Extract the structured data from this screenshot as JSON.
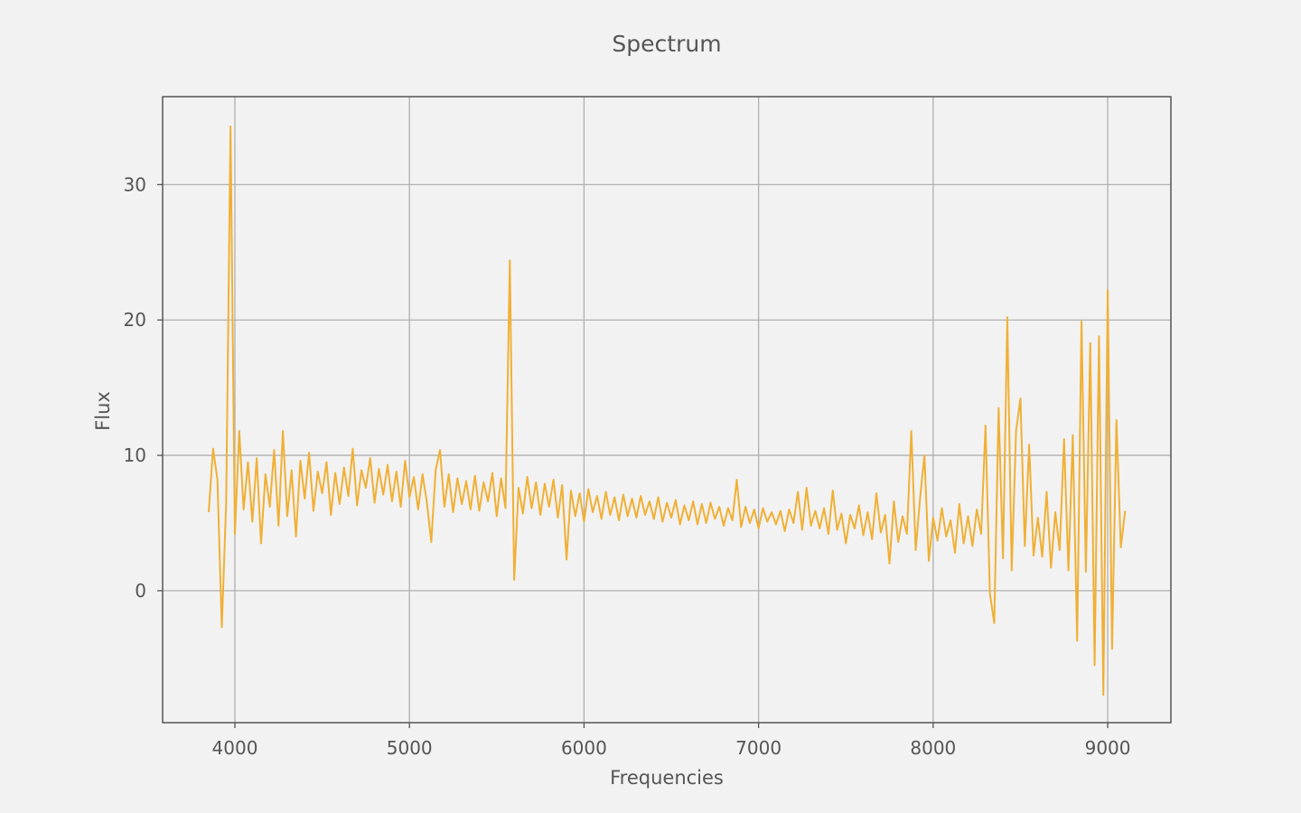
{
  "chart_data": {
    "type": "line",
    "title": "Spectrum",
    "x_label": "Frequencies",
    "y_label": "Flux",
    "color": "#f0b035",
    "grid": true,
    "xlim": [
      3586,
      9362
    ],
    "ylim": [
      -9.75,
      36.5
    ],
    "xticks": [
      4000,
      5000,
      6000,
      7000,
      8000,
      9000
    ],
    "yticks": [
      0,
      10,
      20,
      30
    ],
    "x": [
      3850,
      3875,
      3900,
      3925,
      3950,
      3975,
      4000,
      4025,
      4050,
      4075,
      4100,
      4125,
      4150,
      4175,
      4200,
      4225,
      4250,
      4275,
      4300,
      4325,
      4350,
      4375,
      4400,
      4425,
      4450,
      4475,
      4500,
      4525,
      4550,
      4575,
      4600,
      4625,
      4650,
      4675,
      4700,
      4725,
      4750,
      4775,
      4800,
      4825,
      4850,
      4875,
      4900,
      4925,
      4950,
      4975,
      5000,
      5025,
      5050,
      5075,
      5100,
      5125,
      5150,
      5175,
      5200,
      5225,
      5250,
      5275,
      5300,
      5325,
      5350,
      5375,
      5400,
      5425,
      5450,
      5475,
      5500,
      5525,
      5550,
      5575,
      5600,
      5625,
      5650,
      5675,
      5700,
      5725,
      5750,
      5775,
      5800,
      5825,
      5850,
      5875,
      5900,
      5925,
      5950,
      5975,
      6000,
      6025,
      6050,
      6075,
      6100,
      6125,
      6150,
      6175,
      6200,
      6225,
      6250,
      6275,
      6300,
      6325,
      6350,
      6375,
      6400,
      6425,
      6450,
      6475,
      6500,
      6525,
      6550,
      6575,
      6600,
      6625,
      6650,
      6675,
      6700,
      6725,
      6750,
      6775,
      6800,
      6825,
      6850,
      6875,
      6900,
      6925,
      6950,
      6975,
      7000,
      7025,
      7050,
      7075,
      7100,
      7125,
      7150,
      7175,
      7200,
      7225,
      7250,
      7275,
      7300,
      7325,
      7350,
      7375,
      7400,
      7425,
      7450,
      7475,
      7500,
      7525,
      7550,
      7575,
      7600,
      7625,
      7650,
      7675,
      7700,
      7725,
      7750,
      7775,
      7800,
      7825,
      7850,
      7875,
      7900,
      7925,
      7950,
      7975,
      8000,
      8025,
      8050,
      8075,
      8100,
      8125,
      8150,
      8175,
      8200,
      8225,
      8250,
      8275,
      8300,
      8325,
      8350,
      8375,
      8400,
      8425,
      8450,
      8475,
      8500,
      8525,
      8550,
      8575,
      8600,
      8625,
      8650,
      8675,
      8700,
      8725,
      8750,
      8775,
      8800,
      8825,
      8850,
      8875,
      8900,
      8925,
      8950,
      8975,
      9000,
      9025,
      9050,
      9075,
      9100
    ],
    "values": [
      5.8,
      10.5,
      8.2,
      -2.7,
      6.5,
      34.3,
      4.2,
      11.8,
      6.0,
      9.5,
      5.1,
      9.8,
      3.5,
      8.6,
      6.2,
      10.4,
      4.8,
      11.8,
      5.5,
      8.9,
      4.0,
      9.6,
      6.8,
      10.2,
      5.9,
      8.8,
      7.2,
      9.5,
      5.6,
      8.7,
      6.4,
      9.1,
      7.0,
      10.5,
      6.3,
      8.9,
      7.6,
      9.8,
      6.5,
      9.0,
      7.1,
      9.3,
      6.6,
      8.8,
      6.2,
      9.6,
      6.9,
      8.4,
      6.0,
      8.6,
      6.5,
      3.6,
      8.9,
      10.4,
      6.2,
      8.6,
      5.8,
      8.3,
      6.4,
      8.1,
      6.0,
      8.5,
      5.9,
      8.0,
      6.6,
      8.7,
      5.5,
      8.3,
      6.1,
      24.4,
      0.8,
      7.6,
      5.7,
      8.4,
      6.1,
      8.0,
      5.6,
      7.9,
      6.2,
      8.2,
      5.4,
      7.8,
      2.3,
      7.4,
      5.5,
      7.2,
      5.1,
      7.5,
      5.8,
      7.0,
      5.3,
      7.3,
      5.6,
      6.9,
      5.2,
      7.1,
      5.5,
      6.8,
      5.4,
      7.0,
      5.6,
      6.6,
      5.3,
      6.9,
      5.1,
      6.5,
      5.4,
      6.7,
      4.9,
      6.3,
      5.2,
      6.6,
      4.9,
      6.4,
      5.0,
      6.5,
      5.3,
      6.2,
      4.8,
      6.1,
      5.2,
      8.2,
      4.7,
      6.2,
      5.0,
      6.0,
      4.6,
      6.1,
      5.1,
      5.8,
      4.9,
      5.9,
      4.4,
      6.0,
      5.0,
      7.3,
      4.5,
      7.6,
      4.8,
      5.9,
      4.6,
      6.1,
      4.2,
      7.4,
      4.5,
      5.7,
      3.5,
      5.6,
      4.6,
      6.3,
      4.1,
      5.8,
      3.8,
      7.2,
      4.3,
      5.6,
      2.0,
      6.6,
      3.6,
      5.5,
      4.2,
      11.8,
      3.0,
      6.8,
      10.0,
      2.2,
      5.4,
      3.7,
      6.1,
      4.0,
      5.2,
      2.8,
      6.4,
      3.5,
      5.5,
      3.3,
      6.0,
      4.2,
      12.2,
      -0.2,
      -2.4,
      13.5,
      2.4,
      20.2,
      1.5,
      11.8,
      14.2,
      3.3,
      10.8,
      2.6,
      5.4,
      2.5,
      7.3,
      1.7,
      5.8,
      3.0,
      11.2,
      1.5,
      11.5,
      -3.7,
      19.9,
      1.4,
      18.3,
      -5.5,
      18.8,
      -7.7,
      22.2,
      -4.3,
      12.6,
      3.2,
      5.9
    ]
  }
}
